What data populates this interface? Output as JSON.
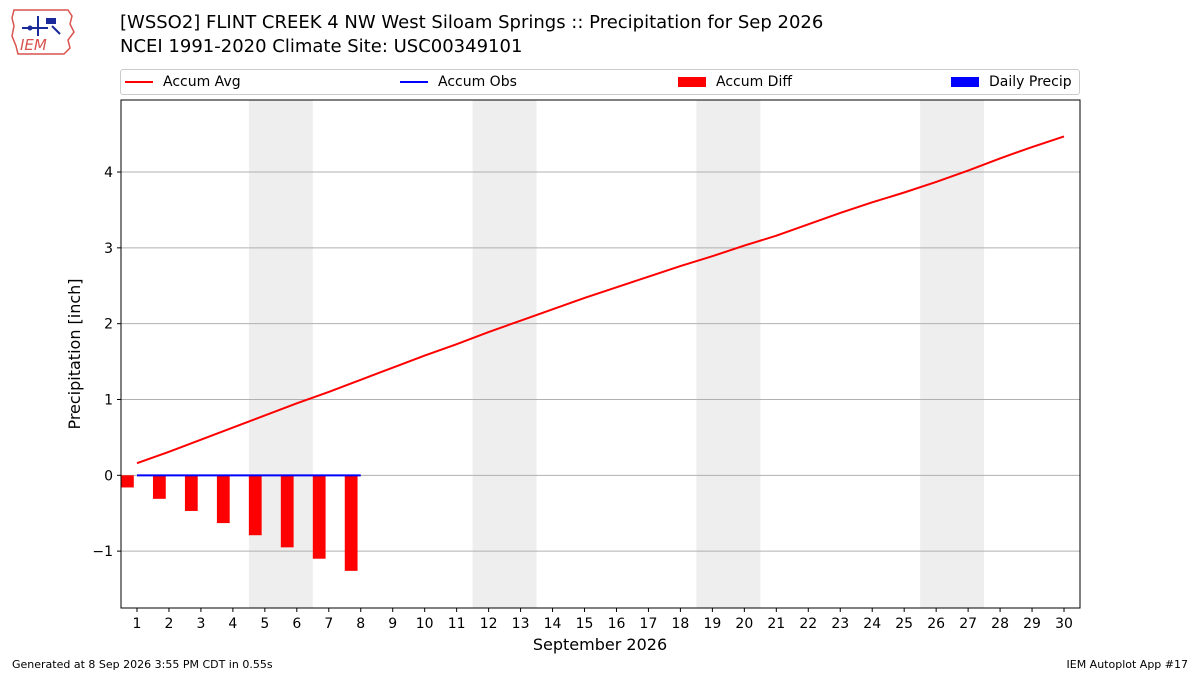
{
  "header": {
    "title_line1": "[WSSO2] FLINT CREEK 4 NW West Siloam Springs :: Precipitation for Sep 2026",
    "title_line2": "NCEI 1991-2020 Climate Site: USC00349101",
    "logo_text": "IEM"
  },
  "legend": {
    "items": [
      {
        "label": "Accum Avg",
        "kind": "line",
        "color": "#ff0000"
      },
      {
        "label": "Accum Obs",
        "kind": "line",
        "color": "#0000ff"
      },
      {
        "label": "Accum Diff",
        "kind": "patch",
        "color": "#ff0000"
      },
      {
        "label": "Daily Precip",
        "kind": "patch",
        "color": "#0000ff"
      }
    ]
  },
  "footer": {
    "left": "Generated at 8 Sep 2026 3:55 PM CDT in 0.55s",
    "right": "IEM Autoplot App #17"
  },
  "chart_data": {
    "type": "line",
    "xlabel": "September 2026",
    "ylabel": "Precipitation [inch]",
    "x_ticks": [
      1,
      2,
      3,
      4,
      5,
      6,
      7,
      8,
      9,
      10,
      11,
      12,
      13,
      14,
      15,
      16,
      17,
      18,
      19,
      20,
      21,
      22,
      23,
      24,
      25,
      26,
      27,
      28,
      29,
      30
    ],
    "xlim": [
      0.5,
      30.5
    ],
    "ylim": [
      -1.75,
      4.95
    ],
    "y_ticks": [
      -1,
      0,
      1,
      2,
      3,
      4
    ],
    "y_tick_labels": [
      "−1",
      "0",
      "1",
      "2",
      "3",
      "4"
    ],
    "grid": "horizontal",
    "weekend_shading": [
      [
        5,
        6
      ],
      [
        12,
        13
      ],
      [
        19,
        20
      ],
      [
        26,
        27
      ]
    ],
    "series": [
      {
        "name": "Accum Avg",
        "type": "line",
        "color": "#ff0000",
        "x": [
          1,
          2,
          3,
          4,
          5,
          6,
          7,
          8,
          9,
          10,
          11,
          12,
          13,
          14,
          15,
          16,
          17,
          18,
          19,
          20,
          21,
          22,
          23,
          24,
          25,
          26,
          27,
          28,
          29,
          30
        ],
        "values": [
          0.16,
          0.31,
          0.47,
          0.63,
          0.79,
          0.95,
          1.1,
          1.26,
          1.42,
          1.58,
          1.73,
          1.89,
          2.04,
          2.19,
          2.34,
          2.48,
          2.62,
          2.76,
          2.89,
          3.03,
          3.16,
          3.31,
          3.46,
          3.6,
          3.73,
          3.87,
          4.02,
          4.18,
          4.33,
          4.47
        ]
      },
      {
        "name": "Accum Obs",
        "type": "line",
        "color": "#0000ff",
        "x": [
          1,
          2,
          3,
          4,
          5,
          6,
          7,
          8
        ],
        "values": [
          0,
          0,
          0,
          0,
          0,
          0,
          0,
          0
        ]
      },
      {
        "name": "Accum Diff",
        "type": "bar",
        "color": "#ff0000",
        "x": [
          1,
          2,
          3,
          4,
          5,
          6,
          7,
          8
        ],
        "values": [
          -0.16,
          -0.31,
          -0.47,
          -0.63,
          -0.79,
          -0.95,
          -1.1,
          -1.26
        ]
      },
      {
        "name": "Daily Precip",
        "type": "bar",
        "color": "#0000ff",
        "x": [
          1,
          2,
          3,
          4,
          5,
          6,
          7,
          8
        ],
        "values": [
          0,
          0,
          0,
          0,
          0,
          0,
          0,
          0
        ]
      }
    ]
  }
}
